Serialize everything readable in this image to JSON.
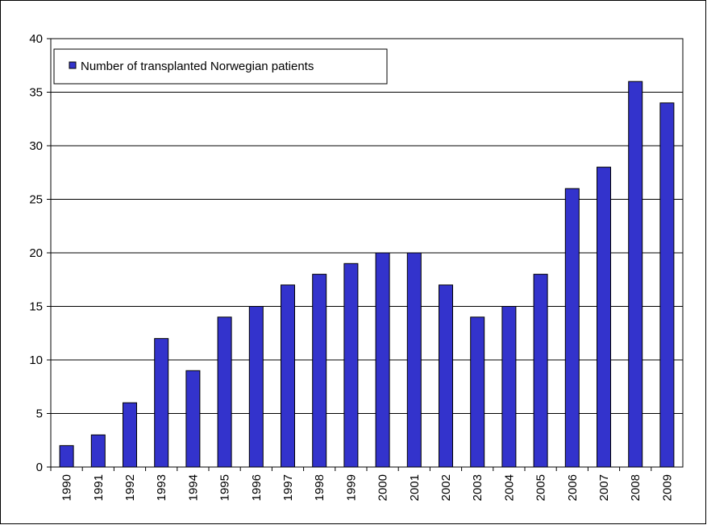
{
  "chart_data": {
    "type": "bar",
    "categories": [
      "1990",
      "1991",
      "1992",
      "1993",
      "1994",
      "1995",
      "1996",
      "1997",
      "1998",
      "1999",
      "2000",
      "2001",
      "2002",
      "2003",
      "2004",
      "2005",
      "2006",
      "2007",
      "2008",
      "2009"
    ],
    "series": [
      {
        "name": "Number of transplanted Norwegian patients",
        "color": "#3333cc",
        "values": [
          2,
          3,
          6,
          12,
          9,
          14,
          15,
          17,
          18,
          19,
          20,
          20,
          17,
          14,
          15,
          18,
          26,
          28,
          36,
          34
        ]
      }
    ],
    "ylim": [
      0,
      40
    ],
    "yticks": [
      0,
      5,
      10,
      15,
      20,
      25,
      30,
      35,
      40
    ],
    "grid": true,
    "legend": "upper left"
  }
}
